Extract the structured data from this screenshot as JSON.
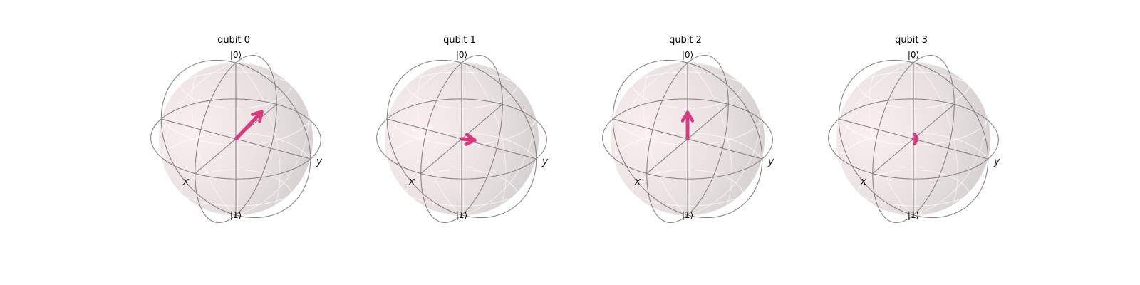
{
  "figure": {
    "type": "bloch_multivector",
    "axis_labels": {
      "x": "x",
      "y": "y",
      "top": "|0⟩",
      "bottom": "|1⟩"
    },
    "colors": {
      "vector": "#d9387f",
      "wire": "#8c8484",
      "sphere_light": "#fbeeee",
      "sphere_dark": "#c9c4c4",
      "background": "#ffffff"
    },
    "qubits": [
      {
        "title": "qubit 0",
        "bloch": [
          0.0,
          0.35,
          0.45
        ]
      },
      {
        "title": "qubit 1",
        "bloch": [
          -0.05,
          0.15,
          0.0
        ]
      },
      {
        "title": "qubit 2",
        "bloch": [
          0.0,
          0.0,
          0.35
        ]
      },
      {
        "title": "qubit 3",
        "bloch": [
          -0.02,
          0.04,
          0.0
        ]
      }
    ]
  }
}
